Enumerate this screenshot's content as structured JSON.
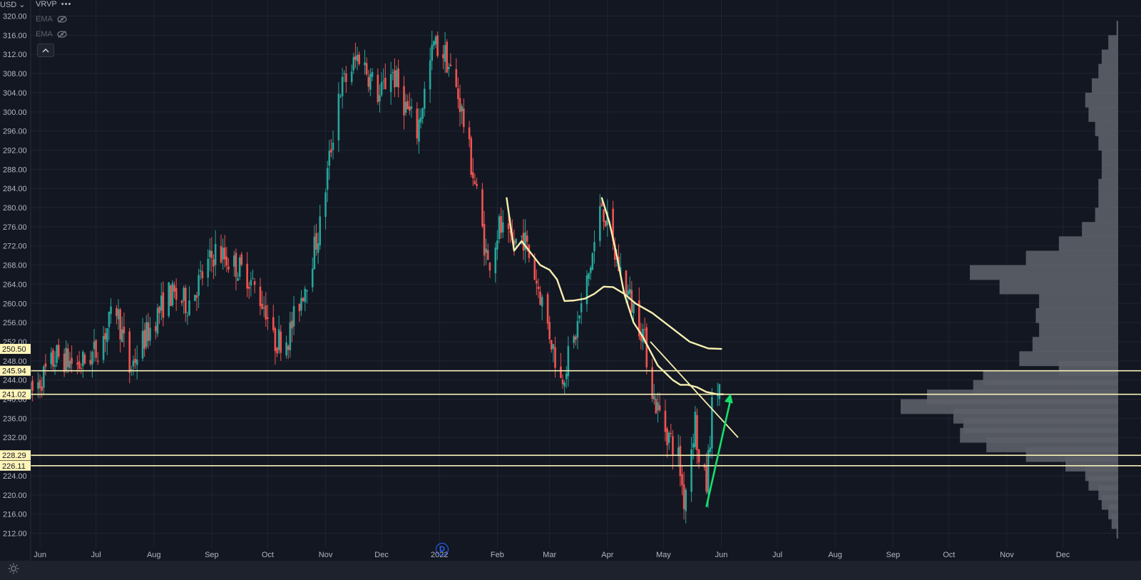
{
  "header": {
    "currency": "USD",
    "indicators": [
      {
        "name": "VRVP",
        "more": "•••"
      },
      {
        "name": "EMA"
      },
      {
        "name": "EMA"
      }
    ]
  },
  "event_badge": "D",
  "colors": {
    "background": "#131722",
    "up": "#26a69a",
    "down": "#ef5350",
    "level_line": "#f5f0b5",
    "ema": "#f7efb0",
    "arrow": "#16e06a",
    "volume_profile": "#5c5f68"
  },
  "chart_data": {
    "type": "candlestick",
    "ylim": [
      210,
      322
    ],
    "yticks": [
      "320.00",
      "316.00",
      "312.00",
      "308.00",
      "304.00",
      "300.00",
      "296.00",
      "292.00",
      "288.00",
      "284.00",
      "280.00",
      "276.00",
      "272.00",
      "268.00",
      "264.00",
      "260.00",
      "256.00",
      "252.00",
      "248.00",
      "244.00",
      "240.00",
      "236.00",
      "232.00",
      "228.00",
      "224.00",
      "220.00",
      "216.00",
      "212.00"
    ],
    "xticks": [
      "Jun",
      "Jul",
      "Aug",
      "Sep",
      "Oct",
      "Nov",
      "Dec",
      "2022",
      "Feb",
      "Mar",
      "Apr",
      "May",
      "Jun",
      "Jul",
      "Aug",
      "Sep",
      "Oct",
      "Nov",
      "Dec"
    ],
    "x_range": [
      "2021-05-27",
      "2022-12-31"
    ],
    "xtick_dates": [
      "2021-06-01",
      "2021-07-01",
      "2021-08-01",
      "2021-09-01",
      "2021-10-01",
      "2021-11-01",
      "2021-12-01",
      "2022-01-01",
      "2022-02-01",
      "2022-03-01",
      "2022-04-01",
      "2022-05-01",
      "2022-06-01",
      "2022-07-01",
      "2022-08-01",
      "2022-09-01",
      "2022-10-01",
      "2022-11-01",
      "2022-12-01"
    ],
    "price_levels": [
      {
        "label": "250.50",
        "value": 250.5,
        "line": false
      },
      {
        "label": "245.94",
        "value": 245.94,
        "line": true
      },
      {
        "label": "241.02",
        "value": 241.02,
        "line": true
      },
      {
        "label": "228.29",
        "value": 228.29,
        "line": true
      },
      {
        "label": "226.11",
        "value": 226.11,
        "line": true
      }
    ],
    "trend_points": [
      [
        "2021-05-27",
        241
      ],
      [
        "2021-06-10",
        249
      ],
      [
        "2021-06-22",
        247
      ],
      [
        "2021-07-01",
        250
      ],
      [
        "2021-07-12",
        259
      ],
      [
        "2021-07-19",
        246
      ],
      [
        "2021-07-26",
        252
      ],
      [
        "2021-08-09",
        262
      ],
      [
        "2021-08-19",
        260
      ],
      [
        "2021-08-30",
        268
      ],
      [
        "2021-09-03",
        271
      ],
      [
        "2021-09-20",
        266
      ],
      [
        "2021-09-30",
        259
      ],
      [
        "2021-10-04",
        252
      ],
      [
        "2021-10-12",
        253
      ],
      [
        "2021-10-21",
        264
      ],
      [
        "2021-10-29",
        276
      ],
      [
        "2021-11-08",
        304
      ],
      [
        "2021-11-19",
        312
      ],
      [
        "2021-11-30",
        303
      ],
      [
        "2021-12-06",
        309
      ],
      [
        "2021-12-14",
        301
      ],
      [
        "2021-12-20",
        296
      ],
      [
        "2021-12-29",
        314
      ],
      [
        "2022-01-04",
        312
      ],
      [
        "2022-01-12",
        302
      ],
      [
        "2022-01-20",
        285
      ],
      [
        "2022-01-27",
        268
      ],
      [
        "2022-02-02",
        276
      ],
      [
        "2022-02-08",
        272
      ],
      [
        "2022-02-15",
        274
      ],
      [
        "2022-02-24",
        262
      ],
      [
        "2022-03-07",
        244
      ],
      [
        "2022-03-14",
        252
      ],
      [
        "2022-03-22",
        266
      ],
      [
        "2022-03-29",
        281
      ],
      [
        "2022-04-05",
        270
      ],
      [
        "2022-04-12",
        262
      ],
      [
        "2022-04-20",
        254
      ],
      [
        "2022-04-26",
        240
      ],
      [
        "2022-05-02",
        234
      ],
      [
        "2022-05-09",
        228
      ],
      [
        "2022-05-12",
        219
      ],
      [
        "2022-05-18",
        236
      ],
      [
        "2022-05-20",
        226
      ],
      [
        "2022-05-24",
        222
      ],
      [
        "2022-05-27",
        238
      ],
      [
        "2022-05-31",
        243
      ]
    ],
    "ema_fast": [
      [
        "2022-02-06",
        282
      ],
      [
        "2022-02-10",
        271
      ],
      [
        "2022-02-14",
        273
      ],
      [
        "2022-02-18",
        271
      ],
      [
        "2022-02-24",
        268
      ],
      [
        "2022-03-01",
        267
      ],
      [
        "2022-03-05",
        265
      ],
      [
        "2022-03-09",
        260.5
      ],
      [
        "2022-03-14",
        260.6
      ],
      [
        "2022-03-20",
        261
      ],
      [
        "2022-03-25",
        262
      ],
      [
        "2022-03-30",
        263.5
      ],
      [
        "2022-04-04",
        263.4
      ],
      [
        "2022-04-10",
        262
      ],
      [
        "2022-04-16",
        260
      ],
      [
        "2022-04-25",
        258
      ],
      [
        "2022-05-05",
        255
      ],
      [
        "2022-05-15",
        252
      ],
      [
        "2022-05-25",
        250.6
      ],
      [
        "2022-06-01",
        250.5
      ]
    ],
    "ema_slow": [
      [
        "2022-03-29",
        282
      ],
      [
        "2022-04-02",
        277
      ],
      [
        "2022-04-06",
        270
      ],
      [
        "2022-04-10",
        262
      ],
      [
        "2022-04-15",
        256
      ],
      [
        "2022-04-20",
        253
      ],
      [
        "2022-04-24",
        250
      ],
      [
        "2022-04-28",
        247
      ],
      [
        "2022-05-02",
        245.5
      ],
      [
        "2022-05-06",
        244
      ],
      [
        "2022-05-10",
        243
      ],
      [
        "2022-05-14",
        243
      ],
      [
        "2022-05-19",
        242.5
      ],
      [
        "2022-05-24",
        241.5
      ],
      [
        "2022-05-30",
        241.02
      ],
      [
        "2022-06-02",
        241.02
      ]
    ],
    "trendline": [
      [
        "2022-04-24",
        252
      ],
      [
        "2022-06-10",
        232
      ]
    ],
    "arrow": [
      [
        "2022-05-24",
        217.5
      ],
      [
        "2022-06-06",
        241.2
      ]
    ],
    "volume_profile_bins": [
      [
        319,
        0.5
      ],
      [
        316,
        3
      ],
      [
        313,
        5
      ],
      [
        310,
        6
      ],
      [
        307,
        8
      ],
      [
        304,
        10
      ],
      [
        301,
        9
      ],
      [
        298,
        7
      ],
      [
        295,
        6
      ],
      [
        292,
        5
      ],
      [
        289,
        5
      ],
      [
        286,
        6
      ],
      [
        283,
        6
      ],
      [
        280,
        7
      ],
      [
        277,
        11
      ],
      [
        274,
        18
      ],
      [
        271,
        28
      ],
      [
        268,
        45
      ],
      [
        265,
        36
      ],
      [
        262,
        24
      ],
      [
        259,
        25
      ],
      [
        256,
        24
      ],
      [
        253,
        26
      ],
      [
        250,
        30
      ],
      [
        248,
        18
      ],
      [
        246,
        41
      ],
      [
        244,
        44
      ],
      [
        242,
        58
      ],
      [
        240,
        66
      ],
      [
        238,
        50
      ],
      [
        236,
        47
      ],
      [
        234,
        48
      ],
      [
        232,
        40
      ],
      [
        230,
        28
      ],
      [
        228,
        16
      ],
      [
        226,
        10
      ],
      [
        224,
        9
      ],
      [
        222,
        6
      ],
      [
        220,
        5
      ],
      [
        218,
        3
      ],
      [
        216,
        2
      ],
      [
        214,
        0.5
      ]
    ]
  }
}
